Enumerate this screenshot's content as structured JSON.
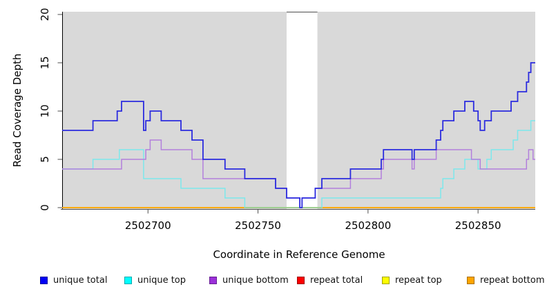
{
  "chart_data": {
    "type": "line",
    "step_mode": "post",
    "title": "",
    "xlabel": "Coordinate in Reference Genome",
    "ylabel": "Read Coverage Depth",
    "xlim": [
      2502661,
      2502876
    ],
    "ylim": [
      0,
      20
    ],
    "x_ticks": [
      2502700,
      2502750,
      2502800,
      2502850
    ],
    "y_ticks": [
      0,
      5,
      10,
      15,
      20
    ],
    "plot_bg_color": "#D9D9D9",
    "white_band_x": [
      2502763,
      2502777
    ],
    "zero_overlap_segment": {
      "x": [
        2502744,
        2502779
      ],
      "color": "#93CE93"
    },
    "x_end": 2502876,
    "series": [
      {
        "name": "unique total",
        "color": "#2B2BDF",
        "steps": [
          [
            2502661,
            8
          ],
          [
            2502675,
            9
          ],
          [
            2502686,
            10
          ],
          [
            2502688,
            11
          ],
          [
            2502698,
            8
          ],
          [
            2502699,
            9
          ],
          [
            2502701,
            10
          ],
          [
            2502706,
            9
          ],
          [
            2502715,
            8
          ],
          [
            2502720,
            7
          ],
          [
            2502725,
            5
          ],
          [
            2502735,
            4
          ],
          [
            2502744,
            3
          ],
          [
            2502758,
            2
          ],
          [
            2502763,
            1
          ],
          [
            2502769,
            0
          ],
          [
            2502770,
            1
          ],
          [
            2502776,
            2
          ],
          [
            2502779,
            3
          ],
          [
            2502792,
            4
          ],
          [
            2502806,
            5
          ],
          [
            2502807,
            6
          ],
          [
            2502820,
            5
          ],
          [
            2502821,
            6
          ],
          [
            2502831,
            7
          ],
          [
            2502833,
            8
          ],
          [
            2502834,
            9
          ],
          [
            2502839,
            10
          ],
          [
            2502844,
            11
          ],
          [
            2502848,
            10
          ],
          [
            2502850,
            9
          ],
          [
            2502851,
            8
          ],
          [
            2502853,
            9
          ],
          [
            2502856,
            10
          ],
          [
            2502865,
            11
          ],
          [
            2502868,
            12
          ],
          [
            2502872,
            13
          ],
          [
            2502873,
            14
          ],
          [
            2502874,
            15
          ]
        ]
      },
      {
        "name": "unique top",
        "color": "#7CE8EC",
        "steps": [
          [
            2502661,
            4
          ],
          [
            2502675,
            5
          ],
          [
            2502687,
            6
          ],
          [
            2502698,
            3
          ],
          [
            2502715,
            2
          ],
          [
            2502735,
            1
          ],
          [
            2502744,
            0
          ],
          [
            2502779,
            1
          ],
          [
            2502833,
            2
          ],
          [
            2502834,
            3
          ],
          [
            2502839,
            4
          ],
          [
            2502844,
            5
          ],
          [
            2502850,
            4
          ],
          [
            2502854,
            5
          ],
          [
            2502856,
            6
          ],
          [
            2502866,
            7
          ],
          [
            2502868,
            8
          ],
          [
            2502874,
            9
          ]
        ]
      },
      {
        "name": "unique bottom",
        "color": "#B27FDC",
        "steps": [
          [
            2502661,
            4
          ],
          [
            2502688,
            5
          ],
          [
            2502699,
            6
          ],
          [
            2502701,
            7
          ],
          [
            2502706,
            6
          ],
          [
            2502720,
            5
          ],
          [
            2502725,
            3
          ],
          [
            2502758,
            2
          ],
          [
            2502763,
            1
          ],
          [
            2502769,
            0
          ],
          [
            2502770,
            1
          ],
          [
            2502776,
            2
          ],
          [
            2502792,
            3
          ],
          [
            2502806,
            4
          ],
          [
            2502807,
            5
          ],
          [
            2502820,
            4
          ],
          [
            2502821,
            5
          ],
          [
            2502831,
            6
          ],
          [
            2502847,
            5
          ],
          [
            2502851,
            4
          ],
          [
            2502872,
            5
          ],
          [
            2502873,
            6
          ],
          [
            2502875,
            5
          ]
        ]
      },
      {
        "name": "repeat total",
        "color": "#FF0000",
        "steps": [
          [
            2502661,
            0
          ]
        ]
      },
      {
        "name": "repeat top",
        "color": "#FFFF00",
        "steps": [
          [
            2502661,
            0
          ]
        ]
      },
      {
        "name": "repeat bottom",
        "color": "#FFA500",
        "steps": [
          [
            2502661,
            0
          ]
        ]
      }
    ]
  },
  "legend": {
    "items": [
      {
        "label": "unique total",
        "fill": "#0000F5",
        "border": "#00009F"
      },
      {
        "label": "unique top",
        "fill": "#00FFFF",
        "border": "#00A9AE"
      },
      {
        "label": "unique bottom",
        "fill": "#9B30D9",
        "border": "#661E92"
      },
      {
        "label": "repeat total",
        "fill": "#FF0000",
        "border": "#9E0000"
      },
      {
        "label": "repeat top",
        "fill": "#FFFF00",
        "border": "#A0A000"
      },
      {
        "label": "repeat bottom",
        "fill": "#FFA500",
        "border": "#A96E00"
      }
    ]
  }
}
